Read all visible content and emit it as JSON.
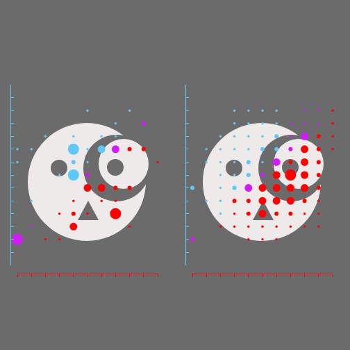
{
  "chart_data": [
    {
      "type": "scatter",
      "tick_labels": false,
      "grid": false,
      "xlim": [
        0,
        10
      ],
      "xticks": [
        0,
        1,
        2,
        3,
        4,
        5,
        6,
        7,
        8,
        9,
        10
      ],
      "ylim": [
        0,
        14
      ],
      "yticks": [
        0,
        1,
        2,
        3,
        4,
        5,
        6,
        7,
        8,
        9,
        10,
        11,
        12,
        13,
        14
      ],
      "x": [
        5,
        8,
        9,
        7,
        2,
        4,
        6,
        7,
        0,
        1,
        4,
        5,
        6,
        7,
        8,
        9,
        0,
        4,
        5,
        10,
        3,
        4,
        5,
        5,
        6,
        7,
        8,
        1,
        4,
        6,
        7,
        3,
        4,
        5,
        7,
        1,
        4,
        8,
        0,
        2,
        3
      ],
      "values": [
        12,
        12,
        11,
        11,
        10,
        10,
        10,
        10,
        9,
        9,
        9,
        9,
        9,
        9,
        9,
        9,
        8,
        8,
        8,
        8,
        7,
        7,
        7,
        6,
        6,
        6,
        6,
        5,
        5,
        5,
        5,
        4,
        4,
        4,
        4,
        3,
        3,
        3,
        2,
        2,
        2
      ],
      "size": [
        1,
        1,
        2,
        1,
        1,
        1,
        1,
        1,
        1,
        1,
        4,
        1,
        3,
        3,
        2,
        2,
        1,
        2,
        1,
        1,
        1,
        4,
        2,
        3,
        3,
        2,
        2,
        1,
        1,
        1,
        1,
        1,
        2,
        1,
        4,
        1,
        3,
        1,
        4,
        1,
        1
      ],
      "colors": [
        "#5ec8f7",
        "#5ec8f7",
        "#d21aff",
        "#5ec8f7",
        "#5ec8f7",
        "#5ec8f7",
        "#5ec8f7",
        "#5ec8f7",
        "#5ec8f7",
        "#5ec8f7",
        "#5ec8f7",
        "#5ec8f7",
        "#5ec8f7",
        "#d21aff",
        "#ff0000",
        "#ff0000",
        "#5ec8f7",
        "#5ec8f7",
        "#5ec8f7",
        "#ff0000",
        "#5ec8f7",
        "#5ec8f7",
        "#d21aff",
        "#ff0000",
        "#ff0000",
        "#ff0000",
        "#ff0000",
        "#5ec8f7",
        "#ff0000",
        "#ff0000",
        "#ff0000",
        "#ff0000",
        "#ff0000",
        "#ff0000",
        "#ff0000",
        "#d21aff",
        "#ff0000",
        "#ff0000",
        "#d21aff",
        "#ff0000",
        "#ff0000"
      ]
    },
    {
      "type": "scatter",
      "tick_labels": false,
      "grid": false,
      "xlim": [
        0,
        10
      ],
      "xticks": [
        0,
        1,
        2,
        3,
        4,
        5,
        6,
        7,
        8,
        9,
        10
      ],
      "ylim": [
        0,
        14
      ],
      "yticks": [
        0,
        1,
        2,
        3,
        4,
        5,
        6,
        7,
        8,
        9,
        10,
        11,
        12,
        13,
        14
      ],
      "x": [
        3,
        4,
        5,
        6,
        8,
        9,
        10,
        3,
        4,
        5,
        6,
        7,
        8,
        9,
        10,
        2,
        3,
        4,
        5,
        6,
        7,
        8,
        9,
        10,
        1,
        2,
        3,
        4,
        5,
        6,
        7,
        8,
        9,
        10,
        1,
        2,
        3,
        4,
        5,
        6,
        7,
        8,
        9,
        2,
        3,
        4,
        5,
        6,
        7,
        8,
        9,
        0,
        2,
        3,
        4,
        5,
        6,
        7,
        8,
        9,
        1,
        2,
        3,
        4,
        5,
        6,
        7,
        8,
        9,
        2,
        3,
        4,
        5,
        6,
        7,
        8,
        9,
        2,
        3,
        4,
        5,
        6,
        7,
        8,
        9,
        0,
        4,
        5,
        6
      ],
      "values": [
        12,
        12,
        12,
        12,
        12,
        12,
        12,
        11,
        11,
        11,
        11,
        11,
        11,
        11,
        11,
        10,
        10,
        10,
        10,
        10,
        10,
        10,
        10,
        10,
        9,
        9,
        9,
        9,
        9,
        9,
        9,
        9,
        9,
        9,
        8,
        8,
        8,
        8,
        8,
        8,
        8,
        8,
        8,
        7,
        7,
        7,
        7,
        7,
        7,
        7,
        7,
        6,
        6,
        6,
        6,
        6,
        6,
        6,
        6,
        6,
        5,
        5,
        5,
        5,
        5,
        5,
        5,
        5,
        5,
        4,
        4,
        4,
        4,
        4,
        4,
        4,
        4,
        3,
        3,
        3,
        3,
        3,
        3,
        3,
        3,
        2,
        2,
        2,
        2
      ],
      "size": [
        1,
        1,
        1,
        1,
        1,
        1,
        1,
        1,
        1,
        1,
        1,
        1,
        1,
        1,
        1,
        1,
        1,
        1,
        1,
        2,
        1,
        3,
        2,
        1,
        1,
        1,
        1,
        1,
        2,
        2,
        2,
        3,
        2,
        1,
        1,
        1,
        1,
        2,
        1,
        3,
        2,
        3,
        2,
        1,
        1,
        2,
        2,
        3,
        4,
        3,
        2,
        2,
        1,
        2,
        3,
        3,
        3,
        3,
        3,
        2,
        1,
        1,
        2,
        2,
        3,
        3,
        3,
        2,
        1,
        1,
        1,
        2,
        3,
        2,
        2,
        1,
        1,
        1,
        1,
        1,
        1,
        1,
        1,
        1,
        1,
        2,
        1,
        1,
        1
      ],
      "colors": [
        "#5ec8f7",
        "#5ec8f7",
        "#5ec8f7",
        "#5ec8f7",
        "#d21aff",
        "#d21aff",
        "#ff0000",
        "#5ec8f7",
        "#5ec8f7",
        "#5ec8f7",
        "#5ec8f7",
        "#d21aff",
        "#d21aff",
        "#d21aff",
        "#ff0000",
        "#5ec8f7",
        "#5ec8f7",
        "#5ec8f7",
        "#5ec8f7",
        "#5ec8f7",
        "#d21aff",
        "#d21aff",
        "#ff0000",
        "#ff0000",
        "#5ec8f7",
        "#5ec8f7",
        "#5ec8f7",
        "#5ec8f7",
        "#5ec8f7",
        "#5ec8f7",
        "#d21aff",
        "#ff0000",
        "#ff0000",
        "#ff0000",
        "#5ec8f7",
        "#5ec8f7",
        "#5ec8f7",
        "#5ec8f7",
        "#5ec8f7",
        "#d21aff",
        "#ff0000",
        "#ff0000",
        "#ff0000",
        "#5ec8f7",
        "#5ec8f7",
        "#5ec8f7",
        "#d21aff",
        "#ff0000",
        "#ff0000",
        "#ff0000",
        "#ff0000",
        "#5ec8f7",
        "#5ec8f7",
        "#5ec8f7",
        "#d21aff",
        "#ff0000",
        "#ff0000",
        "#ff0000",
        "#ff0000",
        "#ff0000",
        "#5ec8f7",
        "#5ec8f7",
        "#ff0000",
        "#ff0000",
        "#ff0000",
        "#ff0000",
        "#ff0000",
        "#ff0000",
        "#ff0000",
        "#5ec8f7",
        "#ff0000",
        "#ff0000",
        "#ff0000",
        "#ff0000",
        "#ff0000",
        "#ff0000",
        "#ff0000",
        "#ff0000",
        "#ff0000",
        "#ff0000",
        "#ff0000",
        "#ff0000",
        "#ff0000",
        "#ff0000",
        "#ff0000",
        "#d21aff",
        "#ff0000",
        "#ff0000",
        "#ff0000"
      ]
    }
  ]
}
